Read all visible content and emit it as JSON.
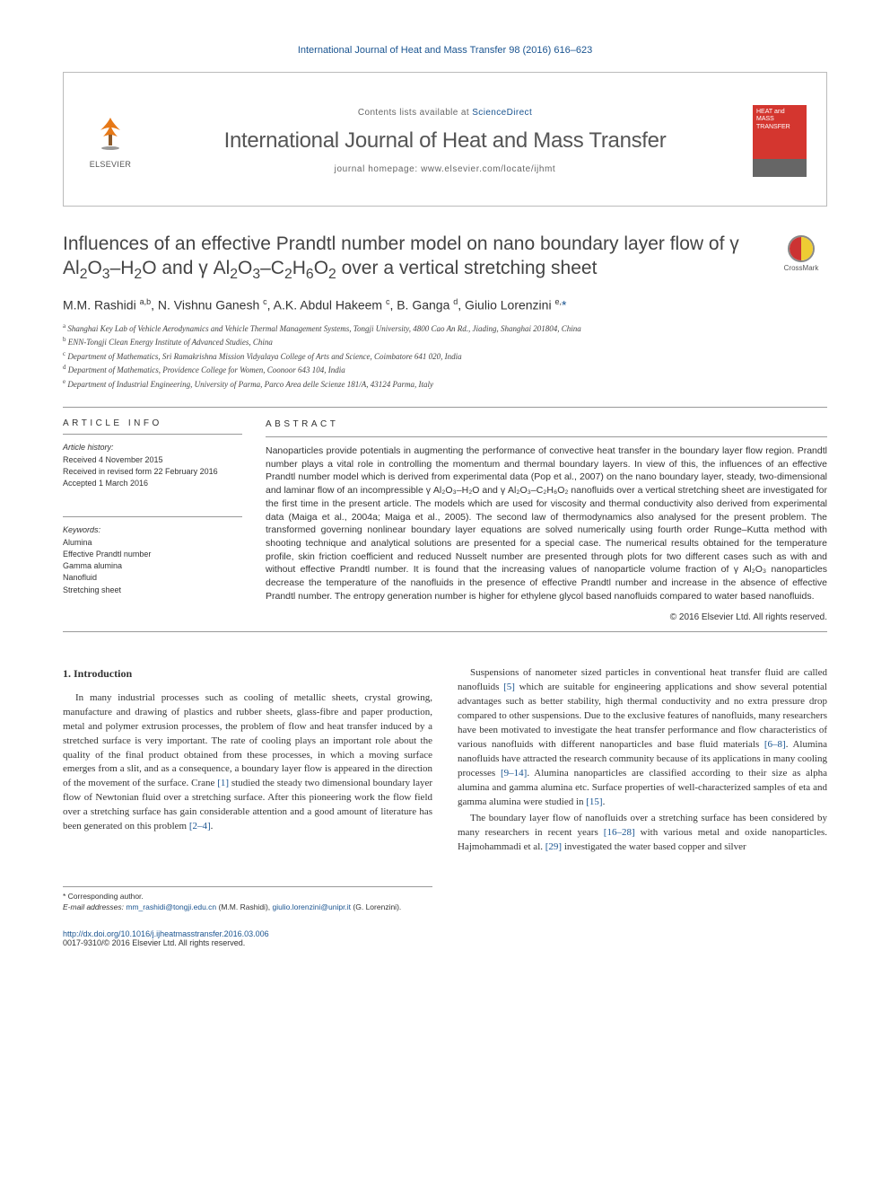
{
  "header": {
    "citation": "International Journal of Heat and Mass Transfer 98 (2016) 616–623",
    "contents_available": "Contents lists available at ",
    "contents_link": "ScienceDirect",
    "journal_name": "International Journal of Heat and Mass Transfer",
    "homepage_prefix": "journal homepage: ",
    "homepage_url": "www.elsevier.com/locate/ijhmt",
    "publisher": "ELSEVIER",
    "cover_text": "HEAT and MASS TRANSFER",
    "crossmark": "CrossMark"
  },
  "article": {
    "title_html": "Influences of an effective Prandtl number model on nano boundary layer flow of γ Al<sub>2</sub>O<sub>3</sub>–H<sub>2</sub>O and γ Al<sub>2</sub>O<sub>3</sub>–C<sub>2</sub>H<sub>6</sub>O<sub>2</sub> over a vertical stretching sheet",
    "authors_html": "M.M. Rashidi <sup>a,b</sup>, N. Vishnu Ganesh <sup>c</sup>, A.K. Abdul Hakeem <sup>c</sup>, B. Ganga <sup>d</sup>, Giulio Lorenzini <sup>e,</sup><a>*</a>",
    "affiliations": [
      "Shanghai Key Lab of Vehicle Aerodynamics and Vehicle Thermal Management Systems, Tongji University, 4800 Cao An Rd., Jiading, Shanghai 201804, China",
      "ENN-Tongji Clean Energy Institute of Advanced Studies, China",
      "Department of Mathematics, Sri Ramakrishna Mission Vidyalaya College of Arts and Science, Coimbatore 641 020, India",
      "Department of Mathematics, Providence College for Women, Coonoor 643 104, India",
      "Department of Industrial Engineering, University of Parma, Parco Area delle Scienze 181/A, 43124 Parma, Italy"
    ],
    "aff_labels": [
      "a",
      "b",
      "c",
      "d",
      "e"
    ]
  },
  "info": {
    "article_info_label": "ARTICLE INFO",
    "abstract_label": "ABSTRACT",
    "history_label": "Article history:",
    "history": [
      "Received 4 November 2015",
      "Received in revised form 22 February 2016",
      "Accepted 1 March 2016"
    ],
    "keywords_label": "Keywords:",
    "keywords": [
      "Alumina",
      "Effective Prandtl number",
      "Gamma alumina",
      "Nanofluid",
      "Stretching sheet"
    ]
  },
  "abstract": "Nanoparticles provide potentials in augmenting the performance of convective heat transfer in the boundary layer flow region. Prandtl number plays a vital role in controlling the momentum and thermal boundary layers. In view of this, the influences of an effective Prandtl number model which is derived from experimental data (Pop et al., 2007) on the nano boundary layer, steady, two-dimensional and laminar flow of an incompressible γ Al₂O₃–H₂O and γ Al₂O₃–C₂H₆O₂ nanofluids over a vertical stretching sheet are investigated for the first time in the present article. The models which are used for viscosity and thermal conductivity also derived from experimental data (Maiga et al., 2004a; Maiga et al., 2005). The second law of thermodynamics also analysed for the present problem. The transformed governing nonlinear boundary layer equations are solved numerically using fourth order Runge–Kutta method with shooting technique and analytical solutions are presented for a special case. The numerical results obtained for the temperature profile, skin friction coefficient and reduced Nusselt number are presented through plots for two different cases such as with and without effective Prandtl number. It is found that the increasing values of nanoparticle volume fraction of γ Al₂O₃ nanoparticles decrease the temperature of the nanofluids in the presence of effective Prandtl number and increase in the absence of effective Prandtl number. The entropy generation number is higher for ethylene glycol based nanofluids compared to water based nanofluids.",
  "copyright": "© 2016 Elsevier Ltd. All rights reserved.",
  "body": {
    "intro_heading": "1. Introduction",
    "col1_p1_html": "In many industrial processes such as cooling of metallic sheets, crystal growing, manufacture and drawing of plastics and rubber sheets, glass-fibre and paper production, metal and polymer extrusion processes, the problem of flow and heat transfer induced by a stretched surface is very important. The rate of cooling plays an important role about the quality of the final product obtained from these processes, in which a moving surface emerges from a slit, and as a consequence, a boundary layer flow is appeared in the direction of the movement of the surface. Crane <span class=\"ref\">[1]</span> studied the steady two dimensional boundary layer flow of Newtonian fluid over a stretching surface. After this pioneering work the flow field over a stretching surface has gain considerable attention and a good amount of literature has been generated on this problem <span class=\"ref\">[2–4]</span>.",
    "col2_p1_html": "Suspensions of nanometer sized particles in conventional heat transfer fluid are called nanofluids <span class=\"ref\">[5]</span> which are suitable for engineering applications and show several potential advantages such as better stability, high thermal conductivity and no extra pressure drop compared to other suspensions. Due to the exclusive features of nanofluids, many researchers have been motivated to investigate the heat transfer performance and flow characteristics of various nanofluids with different nanoparticles and base fluid materials <span class=\"ref\">[6–8]</span>. Alumina nanofluids have attracted the research community because of its applications in many cooling processes <span class=\"ref\">[9–14]</span>. Alumina nanoparticles are classified according to their size as alpha alumina and gamma alumina etc. Surface properties of well-characterized samples of eta and gamma alumina were studied in <span class=\"ref\">[15]</span>.",
    "col2_p2_html": "The boundary layer flow of nanofluids over a stretching surface has been considered by many researchers in recent years <span class=\"ref\">[16–28]</span> with various metal and oxide nanoparticles. Hajmohammadi et al. <span class=\"ref\">[29]</span> investigated the water based copper and silver"
  },
  "footnotes": {
    "corresponding": "* Corresponding author.",
    "email_label": "E-mail addresses: ",
    "email1": "mm_rashidi@tongji.edu.cn",
    "email1_author": " (M.M. Rashidi), ",
    "email2": "giulio.lorenzini@unipr.it",
    "email2_author": " (G. Lorenzini)."
  },
  "footer": {
    "doi": "http://dx.doi.org/10.1016/j.ijheatmasstransfer.2016.03.006",
    "issn": "0017-9310/© 2016 Elsevier Ltd. All rights reserved."
  }
}
